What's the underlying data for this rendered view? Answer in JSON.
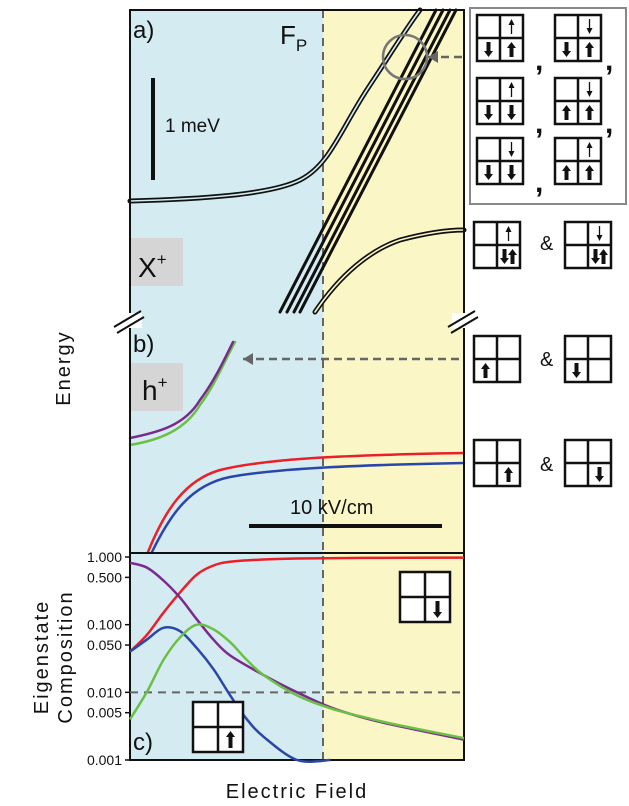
{
  "figure": {
    "ylabel_main": "Energy",
    "xlabel_main": "Electric Field",
    "boundary_label": "F",
    "boundary_sub": "P"
  },
  "colors": {
    "bg_left": "#d4ebf2",
    "bg_right": "#fbf6c6",
    "red": "#e8202a",
    "blue": "#2a47a8",
    "green": "#6cbf45",
    "purple": "#7a2a8c",
    "black": "#111111",
    "badge": "#d5d5d5",
    "dashed": "#666666"
  },
  "chart_data": [
    {
      "panel": "a",
      "type": "line",
      "panel_label": "a)",
      "badge": "X",
      "badge_sup": "+",
      "scalebar_label": "1 meV",
      "series": [
        {
          "color": "black",
          "x": [
            0.0,
            0.2,
            0.4,
            0.55,
            0.6,
            0.7,
            0.85
          ],
          "y": [
            0.1,
            0.12,
            0.2,
            0.42,
            0.62,
            1.05,
            1.7
          ]
        },
        {
          "color": "black",
          "x": [
            0.42,
            0.55,
            0.65,
            0.75,
            0.9,
            1.0
          ],
          "y": [
            -1.75,
            -1.05,
            -0.55,
            -0.3,
            -0.15,
            -0.1
          ]
        },
        {
          "color": "black",
          "x": [
            0.42,
            0.85
          ],
          "y": [
            -1.75,
            1.75
          ]
        }
      ],
      "annotations": {
        "right_box": ", ,\n,\n,",
        "mid_right": "&"
      }
    },
    {
      "panel": "b",
      "type": "line",
      "panel_label": "b)",
      "badge": "h",
      "badge_sup": "+",
      "scalebar_label": "10 kV/cm",
      "series": [
        {
          "color": "purple",
          "x": [
            0.0,
            0.1,
            0.2,
            0.3
          ],
          "y": [
            0.6,
            0.65,
            0.8,
            1.05
          ]
        },
        {
          "color": "green",
          "x": [
            0.0,
            0.1,
            0.2,
            0.3
          ],
          "y": [
            0.56,
            0.62,
            0.78,
            1.05
          ]
        },
        {
          "color": "red",
          "x": [
            0.06,
            0.15,
            0.3,
            0.5,
            0.7,
            1.0
          ],
          "y": [
            -0.1,
            0.25,
            0.42,
            0.47,
            0.49,
            0.5
          ]
        },
        {
          "color": "blue",
          "x": [
            0.06,
            0.15,
            0.3,
            0.5,
            0.7,
            1.0
          ],
          "y": [
            -0.1,
            0.2,
            0.38,
            0.43,
            0.45,
            0.46
          ]
        }
      ],
      "annotations": {
        "upper_right": "&",
        "lower_right": "&"
      }
    },
    {
      "panel": "c",
      "type": "line",
      "panel_label": "c)",
      "ylabel_line1": "Eigenstate",
      "ylabel_line2": "Composition",
      "yscale": "log",
      "ylim": [
        0.001,
        1.0
      ],
      "yticks": [
        "1.000",
        "0.500",
        "0.100",
        "0.050",
        "0.010",
        "0.005",
        "0.001"
      ],
      "ytick_values": [
        1.0,
        0.5,
        0.1,
        0.05,
        0.01,
        0.005,
        0.001
      ],
      "reference_level": 0.01,
      "series": [
        {
          "color": "red",
          "x": [
            0.0,
            0.05,
            0.1,
            0.15,
            0.2,
            0.25,
            0.3,
            0.4,
            0.5,
            0.7,
            1.0
          ],
          "y": [
            0.04,
            0.07,
            0.15,
            0.3,
            0.55,
            0.75,
            0.85,
            0.92,
            0.95,
            0.97,
            0.98
          ]
        },
        {
          "color": "purple",
          "x": [
            0.0,
            0.05,
            0.1,
            0.15,
            0.2,
            0.25,
            0.3,
            0.4,
            0.5,
            0.6,
            0.7,
            0.8,
            1.0
          ],
          "y": [
            0.82,
            0.7,
            0.45,
            0.25,
            0.12,
            0.06,
            0.035,
            0.018,
            0.01,
            0.006,
            0.0042,
            0.0032,
            0.002
          ]
        },
        {
          "color": "blue",
          "x": [
            0.0,
            0.05,
            0.1,
            0.15,
            0.2,
            0.25,
            0.3,
            0.35,
            0.4,
            0.5,
            0.6
          ],
          "y": [
            0.04,
            0.06,
            0.09,
            0.08,
            0.045,
            0.022,
            0.009,
            0.004,
            0.0022,
            0.001,
            0.0009
          ]
        },
        {
          "color": "green",
          "x": [
            0.0,
            0.05,
            0.1,
            0.15,
            0.2,
            0.25,
            0.3,
            0.35,
            0.4,
            0.5,
            0.6,
            0.7,
            0.8,
            1.0
          ],
          "y": [
            0.004,
            0.01,
            0.03,
            0.065,
            0.1,
            0.085,
            0.055,
            0.03,
            0.018,
            0.009,
            0.0058,
            0.0043,
            0.0033,
            0.0021
          ]
        }
      ]
    }
  ]
}
